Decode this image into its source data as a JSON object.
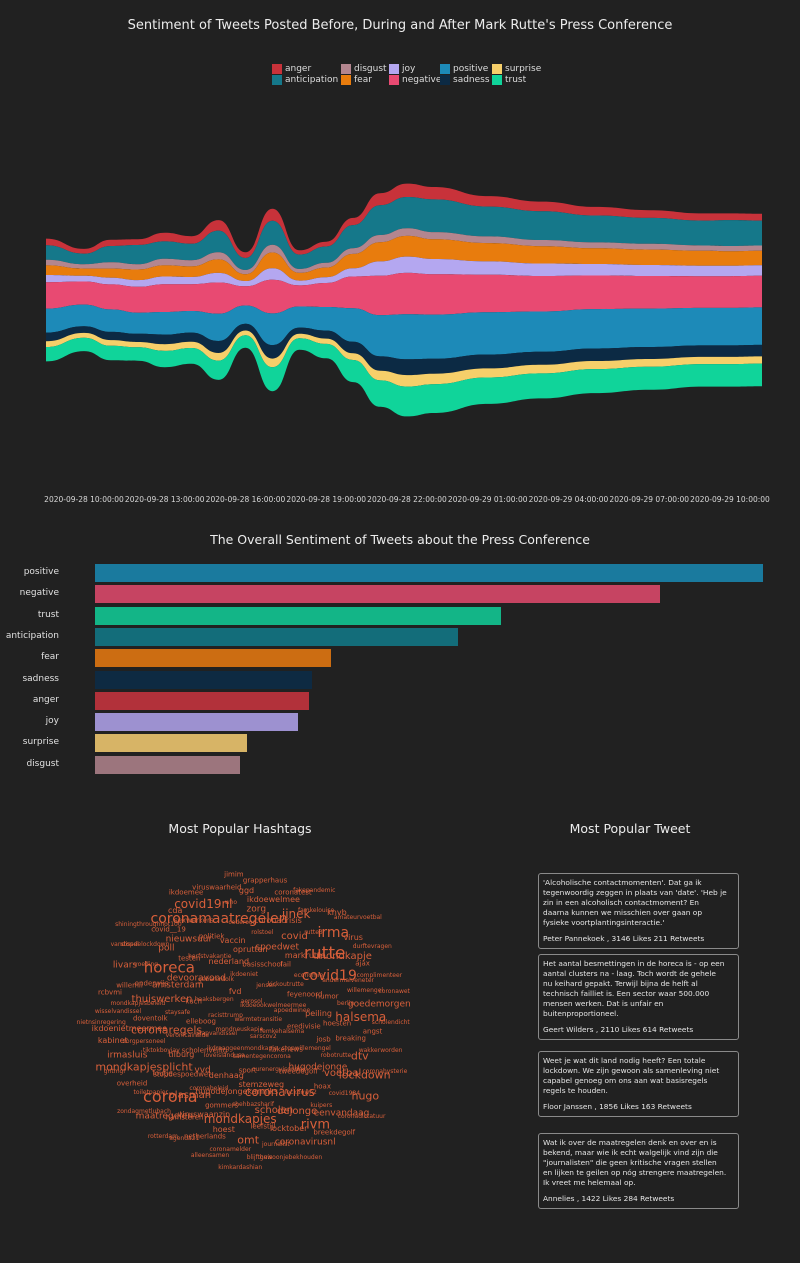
{
  "colors": {
    "anger": "#c8323a",
    "anticipation": "#15788a",
    "disgust": "#b3868f",
    "fear": "#e87c0d",
    "joy": "#b4a7f0",
    "negative": "#e84a72",
    "positive": "#1d8ab8",
    "sadness": "#0c2a44",
    "surprise": "#f6cf6a",
    "trust": "#10d49a",
    "word": "#d85f3a"
  },
  "streamgraph": {
    "title": "Sentiment of Tweets Posted Before, During and After Mark Rutte's Press Conference",
    "legend": [
      "anger",
      "anticipation",
      "disgust",
      "fear",
      "joy",
      "negative",
      "positive",
      "sadness",
      "surprise",
      "trust"
    ],
    "x_ticks": [
      "2020-09-28 10:00:00",
      "2020-09-28 13:00:00",
      "2020-09-28 16:00:00",
      "2020-09-28 19:00:00",
      "2020-09-28 22:00:00",
      "2020-09-29 01:00:00",
      "2020-09-29 04:00:00",
      "2020-09-29 07:00:00",
      "2020-09-29 10:00:00"
    ]
  },
  "chart_data": [
    {
      "type": "area",
      "title": "Sentiment of Tweets Posted Before, During and After Mark Rutte's Press Conference",
      "x": [
        "2020-09-28 09:00",
        "2020-09-28 10:00",
        "2020-09-28 11:00",
        "2020-09-28 12:00",
        "2020-09-28 13:00",
        "2020-09-28 14:00",
        "2020-09-28 15:00",
        "2020-09-28 16:00",
        "2020-09-28 17:00",
        "2020-09-28 18:00",
        "2020-09-28 19:00",
        "2020-09-28 20:00",
        "2020-09-28 21:00",
        "2020-09-28 22:00",
        "2020-09-28 23:00",
        "2020-09-29 01:00",
        "2020-09-29 03:00",
        "2020-09-29 05:00",
        "2020-09-29 07:00",
        "2020-09-29 09:00",
        "2020-09-29 10:00",
        "2020-09-29 11:00"
      ],
      "series": [
        {
          "name": "anger",
          "values": [
            14,
            10,
            13,
            12,
            18,
            16,
            22,
            12,
            25,
            9,
            10,
            15,
            25,
            28,
            26,
            22,
            20,
            18,
            16,
            15,
            14,
            14
          ]
        },
        {
          "name": "anticipation",
          "values": [
            30,
            22,
            34,
            40,
            36,
            34,
            45,
            25,
            50,
            30,
            34,
            48,
            62,
            65,
            68,
            62,
            60,
            56,
            54,
            52,
            54,
            52
          ]
        },
        {
          "name": "disgust",
          "values": [
            12,
            9,
            13,
            11,
            14,
            13,
            15,
            9,
            16,
            8,
            10,
            12,
            15,
            16,
            15,
            14,
            13,
            12,
            12,
            11,
            11,
            11
          ]
        },
        {
          "name": "fear",
          "values": [
            20,
            15,
            19,
            22,
            23,
            22,
            28,
            14,
            33,
            16,
            20,
            30,
            40,
            43,
            41,
            38,
            36,
            33,
            32,
            31,
            30,
            30
          ]
        },
        {
          "name": "joy",
          "values": [
            15,
            12,
            14,
            14,
            16,
            15,
            20,
            11,
            24,
            10,
            12,
            17,
            30,
            34,
            32,
            28,
            26,
            24,
            23,
            22,
            22,
            22
          ]
        },
        {
          "name": "negative",
          "values": [
            55,
            48,
            52,
            54,
            58,
            56,
            65,
            40,
            70,
            44,
            50,
            66,
            82,
            86,
            84,
            78,
            74,
            70,
            68,
            66,
            66,
            66
          ]
        },
        {
          "name": "positive",
          "values": [
            50,
            45,
            47,
            44,
            47,
            45,
            57,
            38,
            66,
            44,
            49,
            70,
            86,
            94,
            92,
            88,
            84,
            82,
            80,
            78,
            78,
            78
          ]
        },
        {
          "name": "sadness",
          "values": [
            18,
            14,
            17,
            17,
            20,
            19,
            25,
            14,
            28,
            13,
            17,
            24,
            30,
            33,
            31,
            29,
            27,
            26,
            25,
            24,
            24,
            24
          ]
        },
        {
          "name": "surprise",
          "values": [
            12,
            10,
            12,
            11,
            14,
            13,
            16,
            10,
            18,
            9,
            11,
            14,
            20,
            24,
            22,
            19,
            18,
            17,
            16,
            15,
            15,
            15
          ]
        },
        {
          "name": "trust",
          "values": [
            30,
            28,
            30,
            28,
            34,
            33,
            40,
            26,
            50,
            24,
            30,
            46,
            55,
            62,
            60,
            55,
            52,
            50,
            48,
            47,
            47,
            47
          ]
        }
      ]
    },
    {
      "type": "bar",
      "title": "The Overall Sentiment of Tweets about the Press Conference",
      "categories": [
        "positive",
        "negative",
        "trust",
        "anticipation",
        "fear",
        "sadness",
        "anger",
        "joy",
        "surprise",
        "disgust"
      ],
      "values": [
        1000,
        846,
        608,
        544,
        354,
        325,
        320,
        304,
        227,
        217
      ],
      "xlim": [
        0,
        1000
      ]
    }
  ],
  "hashtags": {
    "title": "Most Popular Hashtags",
    "words": [
      "warmtetransitie",
      "mondneuskapje",
      "aerosol",
      "sarscov2",
      "racisttrump",
      "ikdoeookwelmeermee",
      "ikdraaggeenmondkapje",
      "fvd",
      "femkehalsema",
      "jaapvandissel",
      "jensen",
      "samentegencorona",
      "haaksbergen",
      "apoedwinee",
      "loveislandusa",
      "ikdoeniet",
      "fakenews",
      "elleboog",
      "kickoutrutte",
      "sport",
      "gebarentolk",
      "eredivisie",
      "scholenveilig",
      "basisschool",
      "ourenergyisonday",
      "kuch",
      "feyenoord",
      "denhaag",
      "nederland",
      "stopwillemengel",
      "veronicainside",
      "fail",
      "stemzeweg",
      "devooravond",
      "peiling",
      "vvd",
      "oprutten",
      "tweedegolf",
      "staysafe",
      "economie",
      "hugodejongekanniks",
      "herfstvakantie",
      "josb",
      "tilburg",
      "spoedwet",
      "coronavirus",
      "amsterdam",
      "humor",
      "coronabeleid",
      "vaccin",
      "hugodejonge",
      "coronaregels",
      "markrutte",
      "shehbazsharif",
      "testen",
      "hoesten",
      "stopdespoedwet",
      "rolstoel",
      "lockdown2",
      "thuiswerken",
      "covid19",
      "gommers",
      "politiek",
      "robotrutte",
      "tiktokboyjay",
      "covid",
      "scholen",
      "horeca",
      "berlin",
      "plasman",
      "coderood",
      "hoax",
      "doventolk",
      "rutte",
      "mondkapjes",
      "nieuwsuur",
      "breaking",
      "foutje",
      "coronacrisis",
      "dejonge",
      "onderwijs",
      "andermalveneter",
      "viruswaanzin",
      "coronamaatregelen",
      "voetbal",
      "zorgpersoneel",
      "rutte3",
      "leefstijl",
      "poll",
      "halsema",
      "corona",
      "zorg",
      "kuipers",
      "mondkapjesbeleid",
      "mondkapje",
      "hoest",
      "sexwerkers",
      "dtv",
      "mondkapjesplicht",
      "jinek",
      "locktober",
      "voeding",
      "willemengel",
      "hamsteren",
      "who",
      "covid1984",
      "ikdoenietmeermee",
      "irma",
      "omt",
      "covid__19",
      "angst",
      "toiletpapier",
      "ikdoewelmee",
      "rivm",
      "willemii",
      "ajax",
      "netherlands",
      "covid19nl",
      "lockdown",
      "irmasluis",
      "famkelouise",
      "journalist",
      "stopdelockdown",
      "goedemorgen",
      "maatregelen",
      "ggd",
      "eenvandaag",
      "wisselvandissel",
      "virus",
      "coronamelder",
      "cda",
      "wakkerworden",
      "overheid",
      "coronatest",
      "coronavirusnl",
      "livars",
      "complimenteer",
      "agenda21",
      "viruswaarheid",
      "hugo",
      "kabinet",
      "knvb",
      "blijfthuis",
      "shiningthroughhot100",
      "scholendicht",
      "zondagmetlubach",
      "grapperhaus",
      "breekdegolf",
      "rcbvmi",
      "durftevragen",
      "alleensamen",
      "ikdoemee",
      "coronahysterie",
      "gntmgr",
      "fakepandemic",
      "gewoonjebekhouden",
      "vandissel",
      "coronawet",
      "rotterdam",
      "jimim",
      "coronadictatuur",
      "nietnsinregering",
      "amateurvoetbal",
      "kimkardashian"
    ]
  },
  "tweets": {
    "title": "Most Popular Tweet",
    "items": [
      {
        "text": "'Alcoholische contactmomenten'. Dat ga ik\ntegenwoordig zeggen in plaats van 'date'. 'Heb je\nzin in een alcoholisch contactmoment? En\ndaarna kunnen we misschien over gaan op\nfysieke voortplantingsinteractie.'",
        "meta": "Peter Pannekoek , 3146 Likes 211 Retweets"
      },
      {
        "text": "Het aantal besmettingen in de horeca is - op een\naantal clusters na - laag. Toch wordt de gehele\nnu keihard gepakt. Terwijl bijna de helft al\ntechnisch failliet is. Een sector waar 500.000\nmensen werken. Dat is unfair en\nbuitenproportioneel.",
        "meta": "Geert Wilders , 2110 Likes 614 Retweets"
      },
      {
        "text": "Weet je wat dit land nodig heeft? Een totale\nlockdown. We zijn gewoon als samenleving niet\ncapabel genoeg om ons aan wat basisregels\nregels te houden.",
        "meta": "Floor Janssen , 1856 Likes 163 Retweets"
      },
      {
        "text": "Wat ik over de maatregelen denk en over en is\nbekend, maar wie ik echt walgelijk vind zijn die\n\"journalisten\" die geen kritische vragen stellen\nen lijken te geilen op nóg strengere maatregelen.\nIk vreet me helemaal op.",
        "meta": "Annelies , 1422 Likes 284 Retweets"
      }
    ]
  }
}
